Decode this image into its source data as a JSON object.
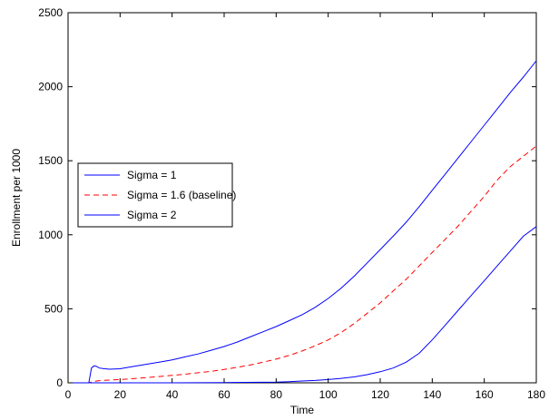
{
  "chart_data": {
    "type": "line",
    "xlabel": "Time",
    "ylabel": "Enrollment per 1000",
    "xlim": [
      0,
      180
    ],
    "ylim": [
      0,
      2500
    ],
    "xticks": [
      0,
      20,
      40,
      60,
      80,
      100,
      120,
      140,
      160,
      180
    ],
    "yticks": [
      0,
      500,
      1000,
      1500,
      2000,
      2500
    ],
    "grid": false,
    "legend_position": "center-left",
    "series": [
      {
        "name": "Sigma = 1",
        "color": "#0000ff",
        "style": "solid",
        "x": [
          0,
          8,
          9,
          10,
          11,
          12,
          14,
          16,
          18,
          20,
          25,
          30,
          35,
          40,
          45,
          50,
          55,
          60,
          65,
          70,
          75,
          80,
          85,
          90,
          95,
          100,
          105,
          110,
          115,
          120,
          125,
          130,
          135,
          140,
          145,
          150,
          155,
          160,
          165,
          170,
          175,
          180
        ],
        "y": [
          0,
          0,
          100,
          115,
          110,
          100,
          95,
          92,
          93,
          95,
          110,
          125,
          140,
          155,
          175,
          195,
          220,
          245,
          275,
          310,
          345,
          380,
          420,
          460,
          510,
          570,
          640,
          720,
          810,
          900,
          990,
          1085,
          1190,
          1300,
          1410,
          1520,
          1630,
          1740,
          1850,
          1960,
          2065,
          2175
        ]
      },
      {
        "name": "Sigma = 1.6 (baseline)",
        "color": "#ff0000",
        "style": "dashed",
        "x": [
          0,
          8,
          10,
          12,
          15,
          20,
          25,
          30,
          35,
          40,
          45,
          50,
          55,
          60,
          65,
          70,
          75,
          80,
          85,
          90,
          95,
          100,
          105,
          110,
          115,
          120,
          125,
          130,
          135,
          140,
          145,
          150,
          155,
          160,
          165,
          170,
          175,
          180
        ],
        "y": [
          0,
          0,
          10,
          15,
          18,
          22,
          28,
          35,
          42,
          50,
          58,
          68,
          78,
          90,
          105,
          120,
          140,
          160,
          185,
          215,
          250,
          290,
          340,
          400,
          470,
          540,
          620,
          700,
          790,
          880,
          970,
          1060,
          1160,
          1260,
          1370,
          1460,
          1530,
          1600
        ]
      },
      {
        "name": "Sigma = 2",
        "color": "#0000ff",
        "style": "solid",
        "x": [
          0,
          40,
          60,
          80,
          85,
          90,
          95,
          100,
          105,
          110,
          115,
          120,
          125,
          130,
          135,
          140,
          145,
          150,
          155,
          160,
          165,
          170,
          175,
          180
        ],
        "y": [
          0,
          0,
          2,
          5,
          8,
          12,
          16,
          22,
          30,
          40,
          55,
          75,
          100,
          140,
          200,
          290,
          390,
          490,
          590,
          690,
          790,
          890,
          990,
          1055
        ]
      }
    ]
  }
}
